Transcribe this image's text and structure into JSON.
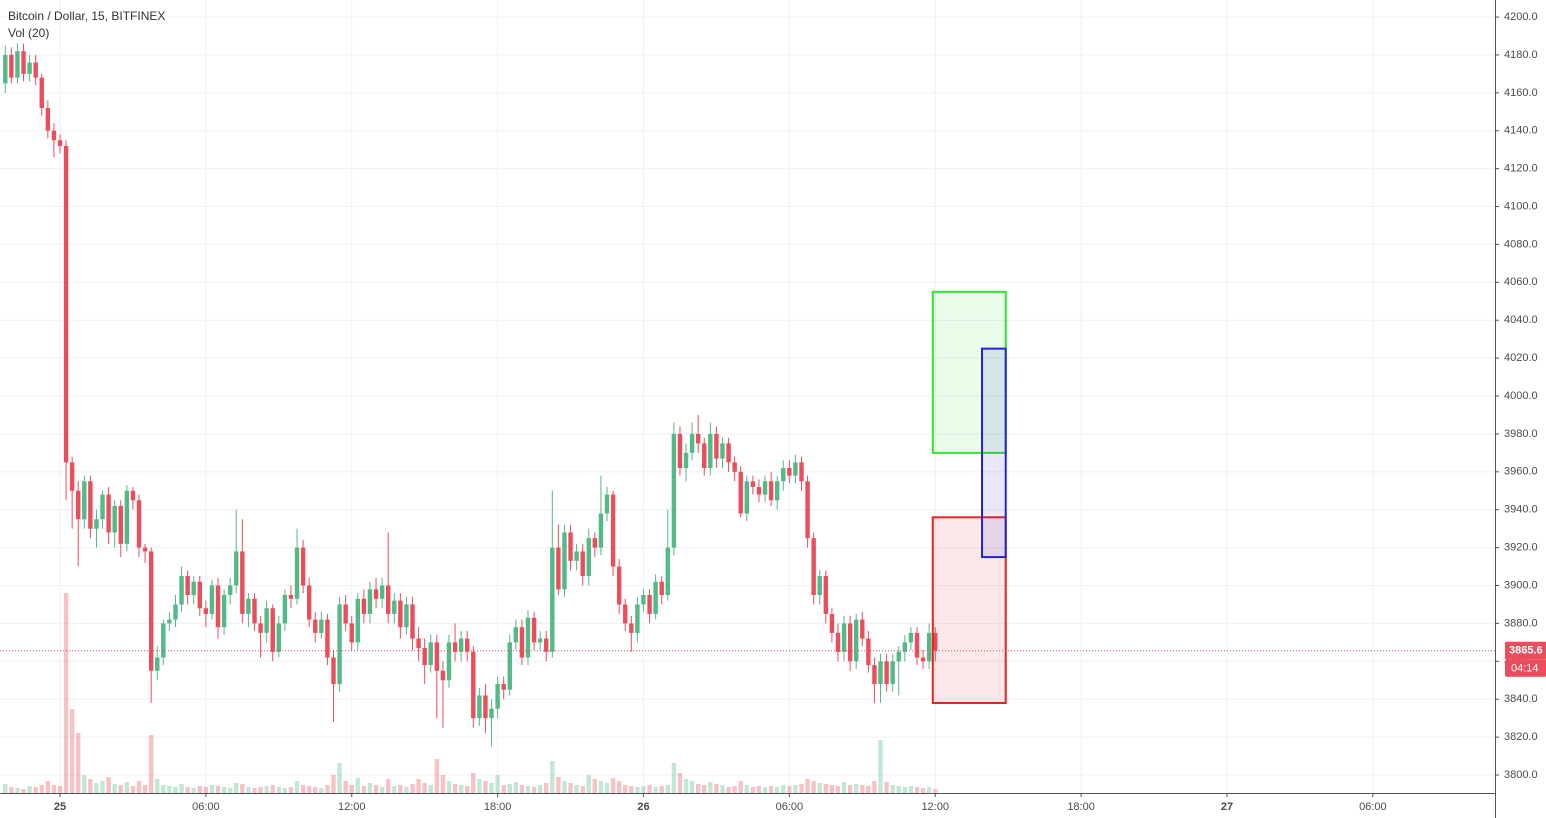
{
  "chart_data": {
    "type": "candlestick",
    "title": "Bitcoin / Dollar, 15, BITFINEX",
    "indicator": "Vol (20)",
    "up_color": "#53b987",
    "down_color": "#eb4d5c",
    "ylim": [
      3790.5,
      4209
    ],
    "xlim": [
      -0.87,
      245.1
    ],
    "yticks": [
      {
        "value": 3800,
        "label": "3800.0"
      },
      {
        "value": 3820,
        "label": "3820.0"
      },
      {
        "value": 3840,
        "label": "3840.0"
      },
      {
        "value": 3860,
        "label": "3860.0"
      },
      {
        "value": 3880,
        "label": "3880.0"
      },
      {
        "value": 3900,
        "label": "3900.0"
      },
      {
        "value": 3920,
        "label": "3920.0"
      },
      {
        "value": 3940,
        "label": "3940.0"
      },
      {
        "value": 3960,
        "label": "3960.0"
      },
      {
        "value": 3980,
        "label": "3980.0"
      },
      {
        "value": 4000,
        "label": "4000.0"
      },
      {
        "value": 4020,
        "label": "4020.0"
      },
      {
        "value": 4040,
        "label": "4040.0"
      },
      {
        "value": 4060,
        "label": "4060.0"
      },
      {
        "value": 4080,
        "label": "4080.0"
      },
      {
        "value": 4100,
        "label": "4100.0"
      },
      {
        "value": 4120,
        "label": "4120.0"
      },
      {
        "value": 4140,
        "label": "4140.0"
      },
      {
        "value": 4160,
        "label": "4160.0"
      },
      {
        "value": 4180,
        "label": "4180.0"
      },
      {
        "value": 4200,
        "label": "4200.0"
      }
    ],
    "xticks": [
      {
        "value": 9,
        "label": "25"
      },
      {
        "value": 33,
        "label": "06:00"
      },
      {
        "value": 57,
        "label": "12:00"
      },
      {
        "value": 81,
        "label": "18:00"
      },
      {
        "value": 105,
        "label": "26"
      },
      {
        "value": 129,
        "label": "06:00"
      },
      {
        "value": 153,
        "label": "12:00"
      },
      {
        "value": 177,
        "label": "18:00"
      },
      {
        "value": 201,
        "label": "27"
      },
      {
        "value": 225,
        "label": "06:00"
      }
    ],
    "grid": true,
    "last_price": 3865.6,
    "countdown": "04:14",
    "last_price_color": "#eb4d5c",
    "candles": [
      [
        4165,
        4185,
        4160,
        4180
      ],
      [
        4180,
        4184,
        4165,
        4168
      ],
      [
        4168,
        4186,
        4165,
        4182
      ],
      [
        4182,
        4186,
        4166,
        4170
      ],
      [
        4170,
        4180,
        4166,
        4176
      ],
      [
        4176,
        4180,
        4164,
        4168
      ],
      [
        4168,
        4170,
        4148,
        4152
      ],
      [
        4152,
        4156,
        4136,
        4140
      ],
      [
        4140,
        4144,
        4126,
        4135
      ],
      [
        4135,
        4138,
        4128,
        4132
      ],
      [
        4132,
        4135,
        3945,
        3965
      ],
      [
        3965,
        3968,
        3930,
        3950
      ],
      [
        3950,
        3955,
        3910,
        3935
      ],
      [
        3935,
        3958,
        3930,
        3955
      ],
      [
        3955,
        3958,
        3925,
        3930
      ],
      [
        3930,
        3940,
        3920,
        3935
      ],
      [
        3935,
        3950,
        3930,
        3948
      ],
      [
        3948,
        3952,
        3922,
        3928
      ],
      [
        3928,
        3945,
        3920,
        3942
      ],
      [
        3942,
        3945,
        3915,
        3922
      ],
      [
        3922,
        3953,
        3918,
        3950
      ],
      [
        3950,
        3952,
        3940,
        3945
      ],
      [
        3945,
        3948,
        3915,
        3920
      ],
      [
        3920,
        3922,
        3912,
        3918
      ],
      [
        3918,
        3920,
        3838,
        3855
      ],
      [
        3855,
        3868,
        3850,
        3862
      ],
      [
        3862,
        3882,
        3858,
        3880
      ],
      [
        3880,
        3886,
        3876,
        3882
      ],
      [
        3882,
        3895,
        3878,
        3890
      ],
      [
        3890,
        3910,
        3886,
        3905
      ],
      [
        3905,
        3908,
        3890,
        3895
      ],
      [
        3895,
        3905,
        3890,
        3902
      ],
      [
        3902,
        3905,
        3884,
        3888
      ],
      [
        3888,
        3892,
        3878,
        3885
      ],
      [
        3885,
        3903,
        3882,
        3900
      ],
      [
        3900,
        3904,
        3872,
        3878
      ],
      [
        3878,
        3898,
        3874,
        3895
      ],
      [
        3895,
        3904,
        3890,
        3900
      ],
      [
        3900,
        3940,
        3896,
        3918
      ],
      [
        3918,
        3935,
        3880,
        3885
      ],
      [
        3885,
        3896,
        3878,
        3893
      ],
      [
        3893,
        3896,
        3876,
        3880
      ],
      [
        3880,
        3884,
        3862,
        3875
      ],
      [
        3875,
        3892,
        3870,
        3888
      ],
      [
        3888,
        3890,
        3860,
        3865
      ],
      [
        3865,
        3884,
        3862,
        3880
      ],
      [
        3880,
        3898,
        3876,
        3895
      ],
      [
        3895,
        3900,
        3888,
        3893
      ],
      [
        3893,
        3930,
        3890,
        3920
      ],
      [
        3920,
        3924,
        3896,
        3900
      ],
      [
        3900,
        3904,
        3878,
        3882
      ],
      [
        3882,
        3886,
        3870,
        3875
      ],
      [
        3875,
        3886,
        3872,
        3882
      ],
      [
        3882,
        3885,
        3858,
        3862
      ],
      [
        3862,
        3866,
        3828,
        3848
      ],
      [
        3848,
        3894,
        3844,
        3890
      ],
      [
        3890,
        3895,
        3876,
        3880
      ],
      [
        3880,
        3884,
        3866,
        3870
      ],
      [
        3870,
        3896,
        3866,
        3893
      ],
      [
        3893,
        3898,
        3880,
        3885
      ],
      [
        3885,
        3902,
        3880,
        3898
      ],
      [
        3898,
        3904,
        3888,
        3893
      ],
      [
        3893,
        3904,
        3888,
        3900
      ],
      [
        3900,
        3928,
        3880,
        3885
      ],
      [
        3885,
        3896,
        3880,
        3892
      ],
      [
        3892,
        3896,
        3872,
        3878
      ],
      [
        3878,
        3894,
        3874,
        3890
      ],
      [
        3890,
        3894,
        3866,
        3872
      ],
      [
        3872,
        3878,
        3860,
        3867
      ],
      [
        3867,
        3872,
        3848,
        3858
      ],
      [
        3858,
        3874,
        3854,
        3870
      ],
      [
        3870,
        3874,
        3830,
        3855
      ],
      [
        3855,
        3860,
        3825,
        3850
      ],
      [
        3850,
        3874,
        3846,
        3870
      ],
      [
        3870,
        3880,
        3860,
        3865
      ],
      [
        3865,
        3876,
        3860,
        3872
      ],
      [
        3872,
        3876,
        3860,
        3865
      ],
      [
        3865,
        3868,
        3825,
        3830
      ],
      [
        3830,
        3846,
        3826,
        3842
      ],
      [
        3842,
        3848,
        3822,
        3830
      ],
      [
        3830,
        3840,
        3815,
        3835
      ],
      [
        3835,
        3852,
        3830,
        3848
      ],
      [
        3848,
        3852,
        3840,
        3845
      ],
      [
        3845,
        3874,
        3842,
        3870
      ],
      [
        3870,
        3882,
        3866,
        3878
      ],
      [
        3878,
        3882,
        3858,
        3862
      ],
      [
        3862,
        3887,
        3858,
        3883
      ],
      [
        3883,
        3886,
        3866,
        3870
      ],
      [
        3870,
        3876,
        3866,
        3872
      ],
      [
        3872,
        3876,
        3860,
        3865
      ],
      [
        3865,
        3950,
        3862,
        3920
      ],
      [
        3920,
        3932,
        3895,
        3898
      ],
      [
        3898,
        3932,
        3894,
        3928
      ],
      [
        3928,
        3932,
        3908,
        3913
      ],
      [
        3913,
        3922,
        3908,
        3918
      ],
      [
        3918,
        3922,
        3900,
        3905
      ],
      [
        3905,
        3930,
        3900,
        3925
      ],
      [
        3925,
        3928,
        3915,
        3920
      ],
      [
        3920,
        3958,
        3916,
        3938
      ],
      [
        3938,
        3952,
        3934,
        3948
      ],
      [
        3948,
        3950,
        3905,
        3910
      ],
      [
        3910,
        3914,
        3885,
        3890
      ],
      [
        3890,
        3893,
        3876,
        3880
      ],
      [
        3880,
        3884,
        3865,
        3875
      ],
      [
        3875,
        3894,
        3870,
        3890
      ],
      [
        3890,
        3898,
        3886,
        3895
      ],
      [
        3895,
        3898,
        3880,
        3885
      ],
      [
        3885,
        3906,
        3882,
        3902
      ],
      [
        3902,
        3905,
        3890,
        3895
      ],
      [
        3895,
        3940,
        3892,
        3920
      ],
      [
        3920,
        3986,
        3916,
        3980
      ],
      [
        3980,
        3984,
        3958,
        3962
      ],
      [
        3962,
        3975,
        3955,
        3970
      ],
      [
        3970,
        3986,
        3966,
        3980
      ],
      [
        3980,
        3990,
        3970,
        3975
      ],
      [
        3975,
        3978,
        3958,
        3962
      ],
      [
        3962,
        3986,
        3958,
        3980
      ],
      [
        3980,
        3984,
        3962,
        3967
      ],
      [
        3967,
        3978,
        3962,
        3975
      ],
      [
        3975,
        3978,
        3960,
        3965
      ],
      [
        3965,
        3968,
        3955,
        3960
      ],
      [
        3960,
        3963,
        3936,
        3938
      ],
      [
        3938,
        3958,
        3934,
        3955
      ],
      [
        3955,
        3958,
        3948,
        3952
      ],
      [
        3952,
        3956,
        3944,
        3948
      ],
      [
        3948,
        3958,
        3944,
        3955
      ],
      [
        3955,
        3960,
        3942,
        3945
      ],
      [
        3945,
        3958,
        3940,
        3955
      ],
      [
        3955,
        3966,
        3950,
        3962
      ],
      [
        3962,
        3966,
        3954,
        3958
      ],
      [
        3958,
        3969,
        3954,
        3965
      ],
      [
        3965,
        3968,
        3950,
        3955
      ],
      [
        3955,
        3958,
        3920,
        3925
      ],
      [
        3925,
        3928,
        3890,
        3895
      ],
      [
        3895,
        3908,
        3890,
        3905
      ],
      [
        3905,
        3908,
        3880,
        3885
      ],
      [
        3885,
        3888,
        3870,
        3875
      ],
      [
        3875,
        3880,
        3860,
        3865
      ],
      [
        3865,
        3884,
        3860,
        3880
      ],
      [
        3880,
        3884,
        3855,
        3860
      ],
      [
        3860,
        3885,
        3856,
        3882
      ],
      [
        3882,
        3886,
        3868,
        3872
      ],
      [
        3872,
        3876,
        3854,
        3858
      ],
      [
        3858,
        3862,
        3838,
        3848
      ],
      [
        3848,
        3864,
        3838,
        3860
      ],
      [
        3860,
        3864,
        3844,
        3848
      ],
      [
        3848,
        3864,
        3844,
        3860
      ],
      [
        3860,
        3868,
        3842,
        3865
      ],
      [
        3865,
        3874,
        3860,
        3870
      ],
      [
        3870,
        3878,
        3866,
        3875
      ],
      [
        3875,
        3878,
        3858,
        3862
      ],
      [
        3862,
        3866,
        3856,
        3860
      ],
      [
        3860,
        3880,
        3856,
        3875
      ],
      [
        3875,
        3878,
        3860,
        3865.6
      ]
    ],
    "volumes": [
      45,
      30,
      25,
      20,
      35,
      30,
      40,
      60,
      40,
      35,
      1000,
      420,
      300,
      90,
      70,
      50,
      60,
      80,
      45,
      40,
      55,
      35,
      60,
      40,
      290,
      70,
      40,
      35,
      30,
      45,
      30,
      25,
      35,
      30,
      40,
      35,
      30,
      25,
      50,
      45,
      30,
      25,
      30,
      35,
      40,
      30,
      25,
      30,
      60,
      40,
      35,
      30,
      25,
      40,
      90,
      150,
      60,
      40,
      75,
      35,
      50,
      40,
      30,
      70,
      35,
      40,
      30,
      45,
      70,
      50,
      40,
      170,
      90,
      60,
      45,
      40,
      35,
      100,
      70,
      60,
      50,
      90,
      40,
      45,
      55,
      40,
      35,
      30,
      40,
      50,
      160,
      80,
      60,
      50,
      40,
      35,
      90,
      70,
      60,
      50,
      75,
      60,
      40,
      35,
      30,
      35,
      40,
      30,
      35,
      40,
      150,
      100,
      70,
      60,
      45,
      40,
      55,
      45,
      40,
      30,
      35,
      60,
      40,
      30,
      35,
      30,
      35,
      30,
      40,
      35,
      40,
      45,
      70,
      60,
      50,
      45,
      40,
      35,
      55,
      40,
      45,
      40,
      35,
      60,
      265,
      55,
      40,
      35,
      30,
      35,
      30,
      25,
      30,
      20
    ],
    "drawings": [
      {
        "top": 4055,
        "bottom": 3970,
        "start": 152.6,
        "end": 164.6,
        "color": "#2ee62e"
      },
      {
        "top": 3936,
        "bottom": 3838,
        "start": 152.6,
        "end": 164.6,
        "color": "#e62222"
      },
      {
        "top": 4025,
        "bottom": 3915,
        "start": 160.7,
        "end": 164.6,
        "color": "#2222dd"
      }
    ]
  }
}
